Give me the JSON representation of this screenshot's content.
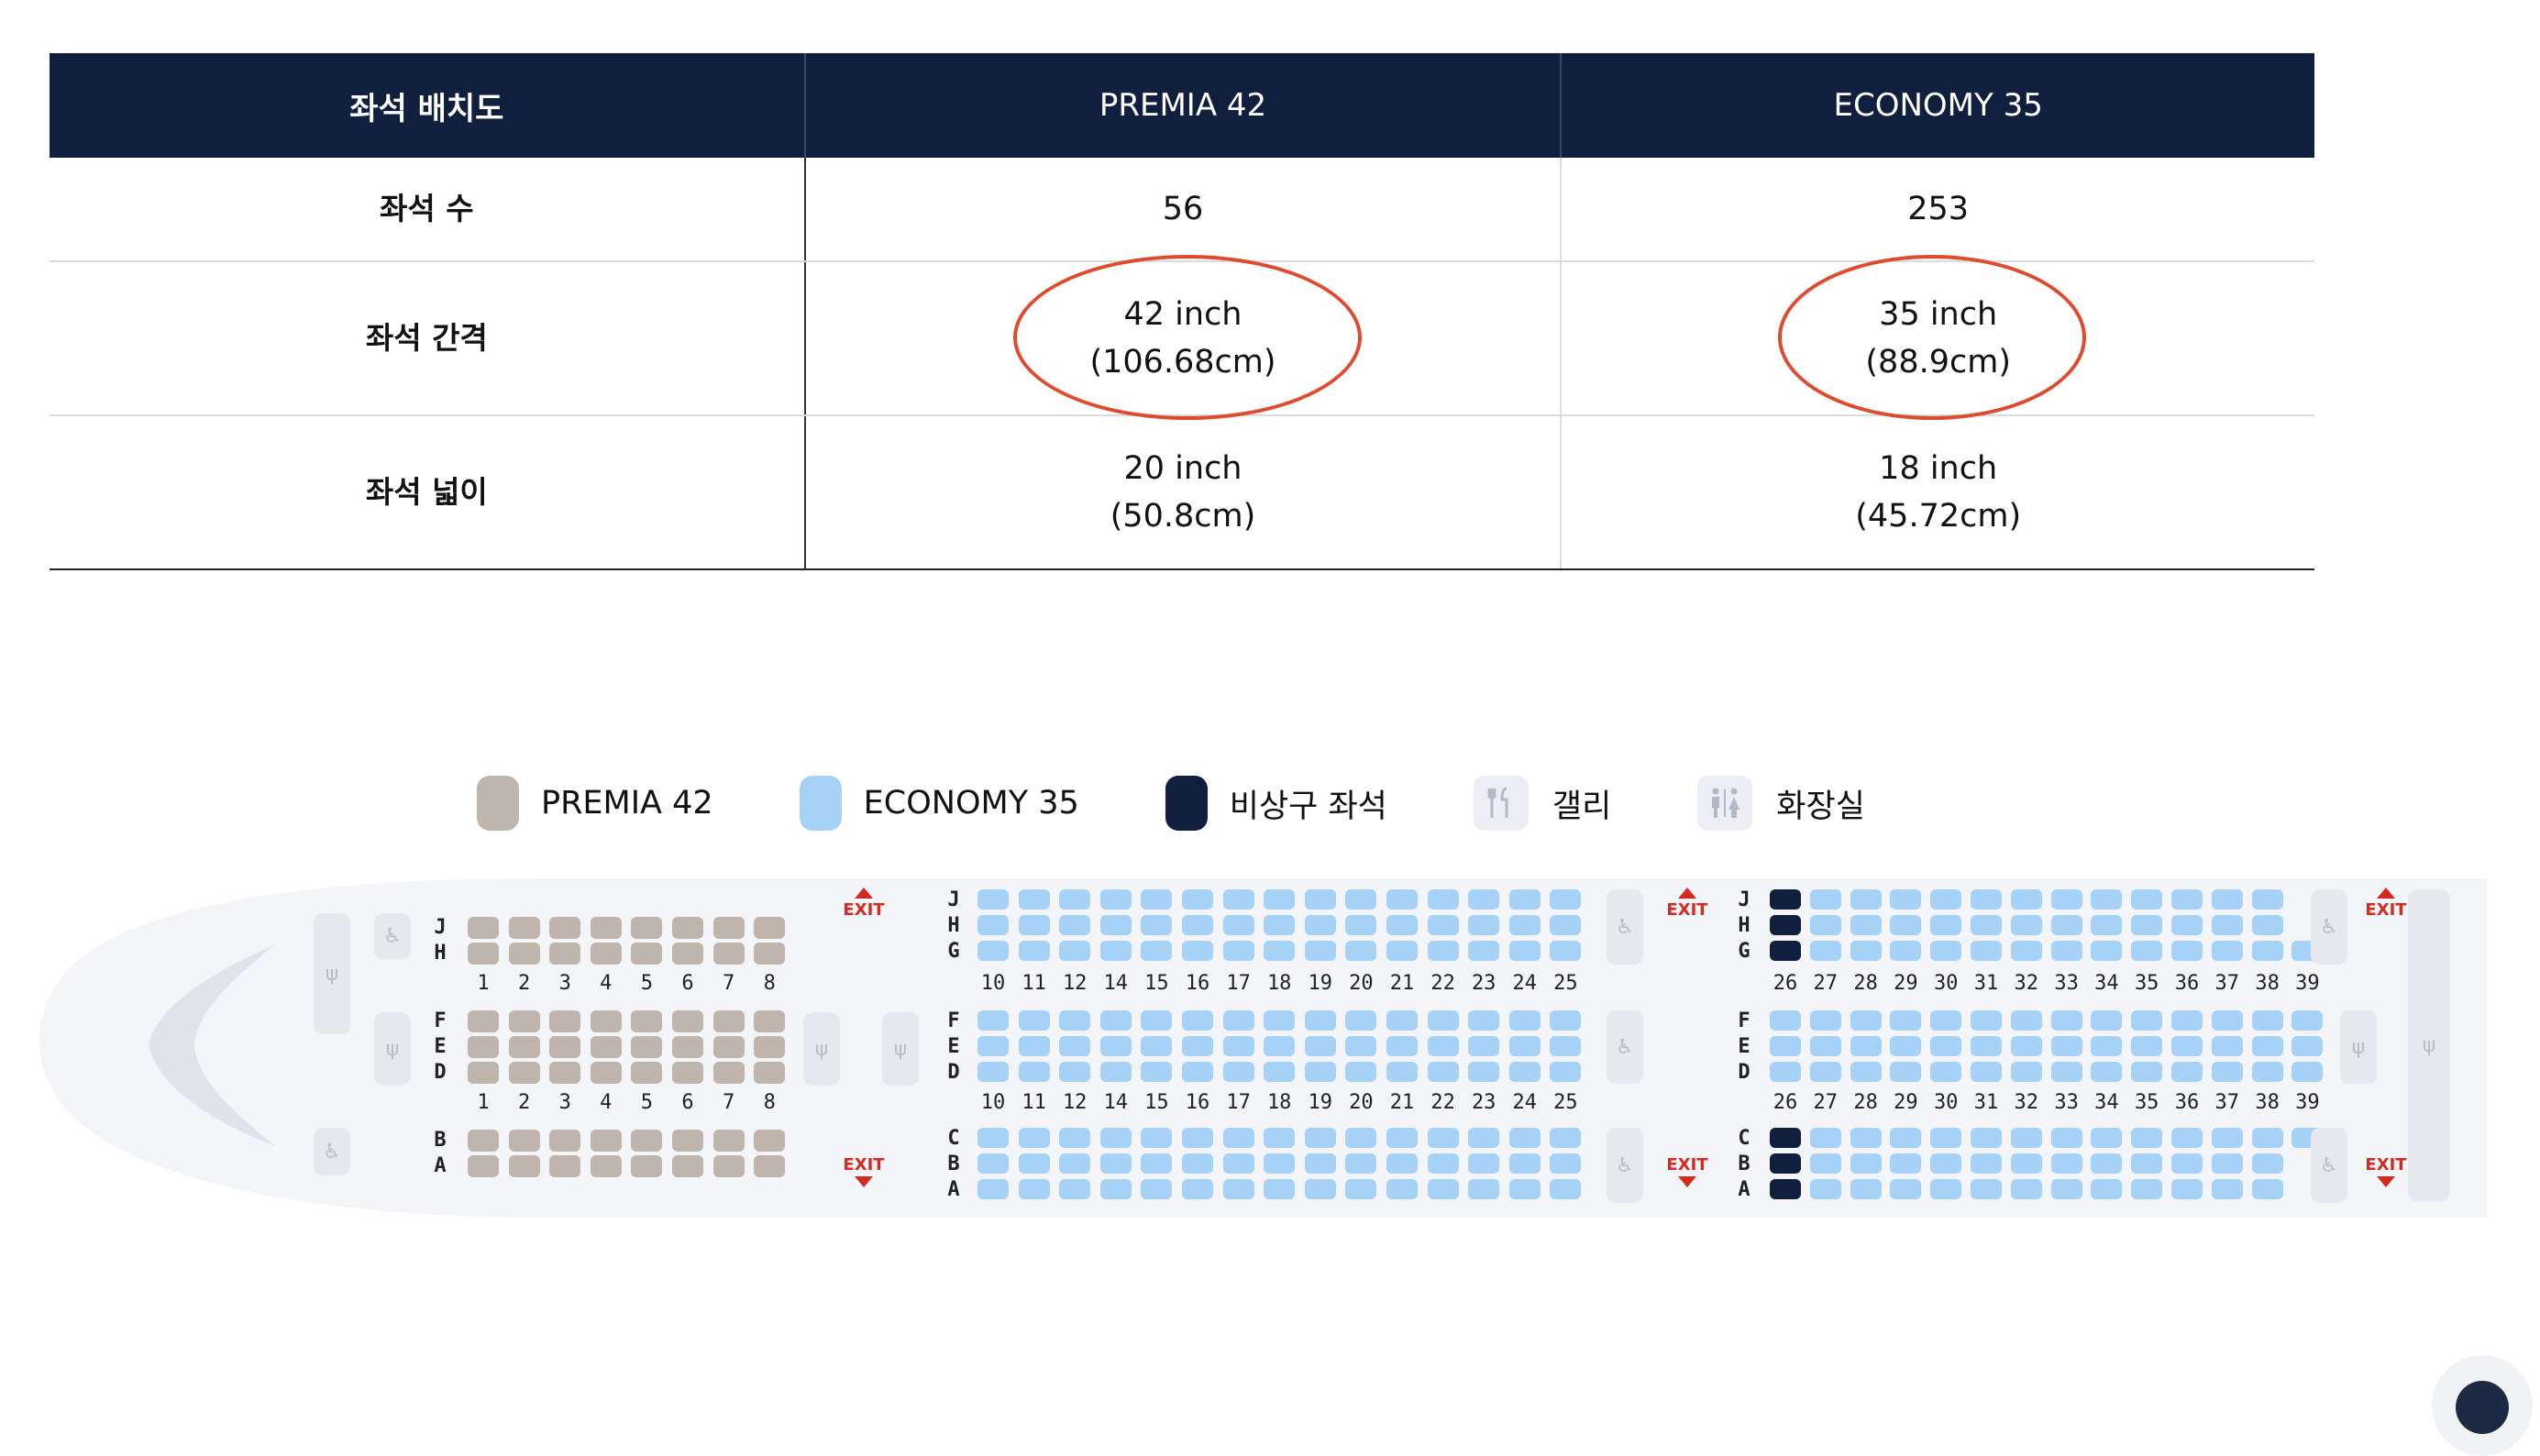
{
  "table": {
    "headers": [
      "좌석 배치도",
      "PREMIA 42",
      "ECONOMY 35"
    ],
    "rows": [
      {
        "label": "좌석 수",
        "premia": [
          "56"
        ],
        "economy": [
          "253"
        ]
      },
      {
        "label": "좌석 간격",
        "premia": [
          "42 inch",
          "(106.68cm)"
        ],
        "economy": [
          "35 inch",
          "(88.9cm)"
        ],
        "highlighted": true
      },
      {
        "label": "좌석 넓이",
        "premia": [
          "20 inch",
          "(50.8cm)"
        ],
        "economy": [
          "18 inch",
          "(45.72cm)"
        ]
      }
    ],
    "highlight_color": "#e04a2f"
  },
  "legend": [
    {
      "label": "PREMIA 42",
      "color": "#bfb5ac",
      "icon": "premia-seat-swatch"
    },
    {
      "label": "ECONOMY 35",
      "color": "#a7d2f7",
      "icon": "economy-seat-swatch"
    },
    {
      "label": "비상구 좌석",
      "color": "#0f1f3d",
      "icon": "exit-seat-swatch"
    },
    {
      "label": "갤리",
      "icon": "galley-icon"
    },
    {
      "label": "화장실",
      "icon": "restroom-icon"
    }
  ],
  "seatmap": {
    "exit_label": "EXIT",
    "premia": {
      "rows": [
        "1",
        "2",
        "3",
        "4",
        "5",
        "6",
        "7",
        "8"
      ],
      "letters_top": [
        "J",
        "H"
      ],
      "letters_mid": [
        "F",
        "E",
        "D"
      ],
      "letters_bot": [
        "B",
        "A"
      ]
    },
    "economy_front": {
      "rows": [
        "10",
        "11",
        "12",
        "14",
        "15",
        "16",
        "17",
        "18",
        "19",
        "20",
        "21",
        "22",
        "23",
        "24",
        "25"
      ],
      "letters_top": [
        "J",
        "H",
        "G"
      ],
      "letters_mid": [
        "F",
        "E",
        "D"
      ],
      "letters_bot": [
        "C",
        "B",
        "A"
      ]
    },
    "economy_rear": {
      "rows": [
        "26",
        "27",
        "28",
        "29",
        "30",
        "31",
        "32",
        "33",
        "34",
        "35",
        "36",
        "37",
        "38",
        "39"
      ],
      "letters_top": [
        "J",
        "H",
        "G"
      ],
      "letters_mid": [
        "F",
        "E",
        "D"
      ],
      "letters_bot": [
        "C",
        "B",
        "A"
      ]
    },
    "colors": {
      "premia": "#bfb5ac",
      "economy": "#a7d2f7",
      "exit": "#0f1f3d",
      "fuselage": "#f3f5f9"
    }
  }
}
